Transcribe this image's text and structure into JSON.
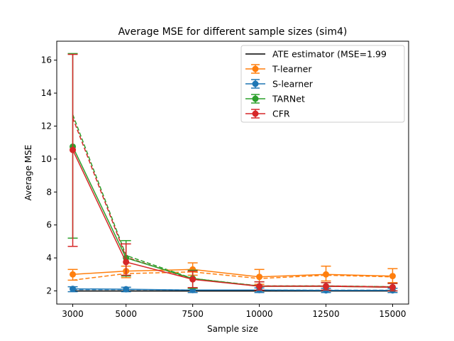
{
  "chart_data": {
    "type": "line",
    "title": "Average MSE for different sample sizes (sim4)",
    "xlabel": "Sample size",
    "ylabel": "Average MSE",
    "x": [
      3000,
      5000,
      7500,
      10000,
      12500,
      15000
    ],
    "x_tick_labels": [
      "3000",
      "5000",
      "7500",
      "10000",
      "12500",
      "15000"
    ],
    "xlim": [
      2400,
      15600
    ],
    "ylim": [
      1.2,
      17.15
    ],
    "y_ticks": [
      2,
      4,
      6,
      8,
      10,
      12,
      14,
      16
    ],
    "y_tick_labels": [
      "2",
      "4",
      "6",
      "8",
      "10",
      "12",
      "14",
      "16"
    ],
    "grid": false,
    "legend_position": "top-right",
    "reference_line": {
      "name": "ATE estimator (MSE=1.99",
      "value": 1.99,
      "color": "#000000"
    },
    "series": [
      {
        "name": "T-learner",
        "color": "#ff7f0e",
        "values": [
          3.0,
          3.2,
          3.3,
          2.85,
          3.0,
          2.9
        ],
        "err_low": [
          2.65,
          2.8,
          2.95,
          2.4,
          2.6,
          2.5
        ],
        "err_high": [
          3.3,
          3.5,
          3.7,
          3.3,
          3.5,
          3.35
        ],
        "dashed": [
          2.65,
          3.05,
          3.15,
          2.75,
          2.95,
          2.85
        ]
      },
      {
        "name": "S-learner",
        "color": "#1f77b4",
        "values": [
          2.12,
          2.1,
          2.05,
          2.05,
          2.03,
          2.03
        ],
        "err_low": [
          1.95,
          1.95,
          1.9,
          1.9,
          1.9,
          1.9
        ],
        "err_high": [
          2.25,
          2.22,
          2.18,
          2.18,
          2.16,
          2.16
        ],
        "dashed": [
          2.08,
          2.08,
          2.05,
          2.05,
          2.04,
          2.04
        ]
      },
      {
        "name": "TARNet",
        "color": "#2ca02c",
        "values": [
          10.75,
          4.0,
          2.75,
          2.28,
          2.28,
          2.22
        ],
        "err_low": [
          5.2,
          2.9,
          2.15,
          2.05,
          2.05,
          2.0
        ],
        "err_high": [
          16.4,
          5.05,
          3.25,
          2.55,
          2.5,
          2.45
        ],
        "dashed": [
          12.7,
          4.15,
          2.75,
          2.3,
          2.3,
          2.25
        ]
      },
      {
        "name": "CFR",
        "color": "#d62728",
        "values": [
          10.55,
          3.75,
          2.7,
          2.28,
          2.28,
          2.22
        ],
        "err_low": [
          4.7,
          2.95,
          2.2,
          2.05,
          2.05,
          2.0
        ],
        "err_high": [
          16.35,
          4.85,
          3.2,
          2.55,
          2.5,
          2.45
        ],
        "dashed": [
          12.5,
          4.05,
          2.7,
          2.3,
          2.3,
          2.25
        ]
      }
    ]
  }
}
